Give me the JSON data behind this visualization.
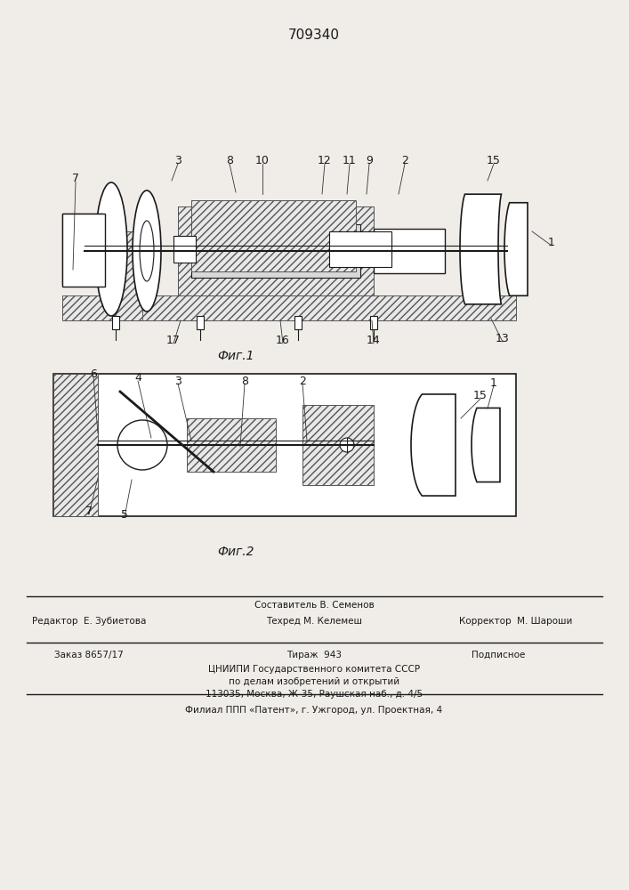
{
  "patent_number": "709340",
  "fig1_caption": "Фиг.1",
  "fig2_caption": "Фиг.2",
  "footer_line1_left": "Редактор  Е. Зубиетова",
  "footer_line1_center": "Техред М. Келемеш",
  "footer_line1_right": "Корректор  М. Шароши",
  "footer_line0_center": "Составитель В. Семенов",
  "footer_line2_left": "Заказ 8657/17",
  "footer_line2_center": "Тираж  943",
  "footer_line2_right": "Подписное",
  "footer_line3": "ЦНИИПИ Государственного комитета СССР",
  "footer_line4": "по делам изобретений и открытий",
  "footer_line5": "113035, Москва, Ж-35, Раушская наб., д. 4/5",
  "footer_line6": "Филиал ППП «Патент», г. Ужгород, ул. Проектная, 4",
  "bg_color": "#f0ede8",
  "line_color": "#1a1a1a",
  "hatch_color": "#333333"
}
